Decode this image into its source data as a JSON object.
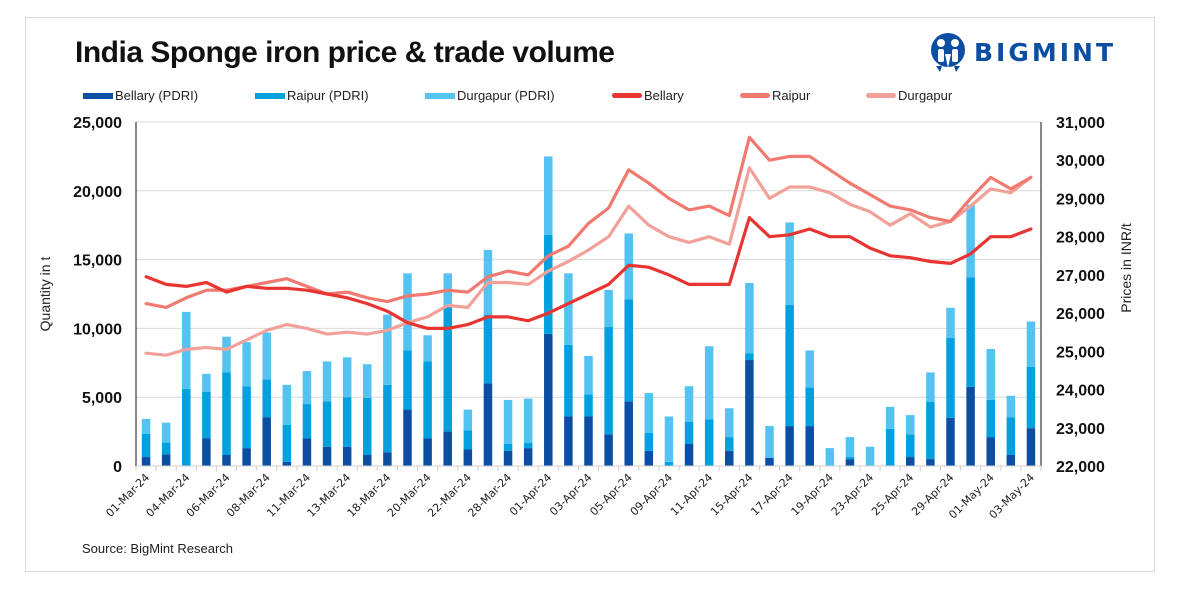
{
  "header": {
    "title": "India Sponge iron price & trade volume",
    "logo_text": "BIGMINT"
  },
  "footer": {
    "source": "Source: BigMint Research"
  },
  "colors": {
    "bellary_pdri": "#0b4ea2",
    "raipur_pdri": "#03a0e0",
    "durgapur_pdri": "#55c3f2",
    "bellary": "#e83531",
    "raipur": "#f07a70",
    "durgapur": "#f2a19a",
    "grid": "#d9d9d9",
    "brand": "#0b4ea2"
  },
  "chart_data": {
    "type": "bar+line",
    "title": "India Sponge iron price & trade volume",
    "ylabel": "Quantity in t",
    "y2label": "Prices in INR/t",
    "ylim": [
      0,
      25000
    ],
    "y2lim": [
      22000,
      31000
    ],
    "yticks": [
      "0",
      "5,000",
      "10,000",
      "15,000",
      "20,000",
      "25,000"
    ],
    "y2ticks": [
      "22,000",
      "23,000",
      "24,000",
      "25,000",
      "26,000",
      "27,000",
      "28,000",
      "29,000",
      "30,000",
      "31,000"
    ],
    "grid": true,
    "legend_position": "top",
    "categories": [
      "01-Mar-24",
      "",
      "04-Mar-24",
      "",
      "06-Mar-24",
      "",
      "08-Mar-24",
      "",
      "11-Mar-24",
      "",
      "13-Mar-24",
      "",
      "18-Mar-24",
      "",
      "20-Mar-24",
      "",
      "22-Mar-24",
      "",
      "28-Mar-24",
      "",
      "01-Apr-24",
      "",
      "03-Apr-24",
      "",
      "05-Apr-24",
      "",
      "09-Apr-24",
      "",
      "11-Apr-24",
      "",
      "15-Apr-24",
      "",
      "17-Apr-24",
      "",
      "19-Apr-24",
      "",
      "23-Apr-24",
      "",
      "25-Apr-24",
      "",
      "29-Apr-24",
      "",
      "01-May-24",
      "",
      "03-May-24"
    ],
    "bar_series": [
      {
        "name": "Bellary (PDRI)",
        "key": "bellary_pdri",
        "values": [
          650,
          850,
          0,
          2000,
          800,
          1300,
          3550,
          300,
          2000,
          1400,
          1400,
          800,
          1000,
          4100,
          2000,
          2500,
          1200,
          6000,
          1100,
          1300,
          9600,
          3600,
          3600,
          2300,
          4700,
          1100,
          0,
          1600,
          0,
          1100,
          7700,
          600,
          2900,
          2900,
          0,
          500,
          0,
          0,
          650,
          500,
          3500,
          5750,
          2100,
          800,
          2750
        ]
      },
      {
        "name": "Raipur (PDRI)",
        "key": "raipur_pdri",
        "values": [
          1680,
          850,
          5600,
          3400,
          6000,
          4500,
          2750,
          2700,
          2500,
          3300,
          3600,
          4150,
          4900,
          4300,
          5600,
          9100,
          1400,
          5000,
          500,
          400,
          7200,
          5200,
          1600,
          7800,
          7400,
          1300,
          300,
          1600,
          3400,
          1000,
          500,
          0,
          8800,
          2800,
          0,
          150,
          0,
          2700,
          1650,
          4150,
          5800,
          7950,
          2700,
          2750,
          4450
        ]
      },
      {
        "name": "Durgapur (PDRI)",
        "key": "durgapur_pdri",
        "values": [
          1090,
          1450,
          5600,
          1300,
          2600,
          3200,
          3400,
          2900,
          2400,
          2900,
          2900,
          2450,
          5100,
          5600,
          1900,
          2400,
          1500,
          4700,
          3200,
          3200,
          5700,
          5200,
          2800,
          2700,
          4800,
          2900,
          3300,
          2600,
          5300,
          2100,
          5100,
          2300,
          6000,
          2700,
          1300,
          1450,
          1400,
          1600,
          1400,
          2150,
          2200,
          5300,
          3700,
          1550,
          3300
        ]
      }
    ],
    "line_series": [
      {
        "name": "Bellary",
        "key": "bellary",
        "values": [
          26950,
          26750,
          26700,
          26800,
          26550,
          26700,
          26650,
          26650,
          26600,
          26500,
          26400,
          26250,
          26050,
          25750,
          25600,
          25600,
          25700,
          25900,
          25900,
          25800,
          26000,
          26250,
          26500,
          26750,
          27250,
          27200,
          27000,
          26750,
          26750,
          26750,
          28500,
          28000,
          28050,
          28200,
          28000,
          28000,
          27700,
          27500,
          27450,
          27350,
          27300,
          27550,
          28000,
          28000,
          28200
        ]
      },
      {
        "name": "Raipur",
        "key": "raipur",
        "values": [
          26250,
          26150,
          26400,
          26600,
          26600,
          26700,
          26800,
          26900,
          26700,
          26500,
          26550,
          26400,
          26300,
          26450,
          26500,
          26600,
          26550,
          26950,
          27100,
          27000,
          27500,
          27750,
          28350,
          28750,
          29750,
          29400,
          29000,
          28700,
          28800,
          28550,
          30600,
          30000,
          30100,
          30100,
          29750,
          29400,
          29100,
          28800,
          28700,
          28500,
          28400,
          29000,
          29550,
          29250,
          29550
        ]
      },
      {
        "name": "Durgapur",
        "key": "durgapur",
        "values": [
          24950,
          24900,
          25050,
          25100,
          25050,
          25300,
          25550,
          25700,
          25600,
          25450,
          25500,
          25450,
          25550,
          25750,
          25900,
          26200,
          26150,
          26800,
          26800,
          26750,
          27100,
          27350,
          27650,
          28000,
          28800,
          28300,
          28000,
          27850,
          28000,
          27800,
          29800,
          29000,
          29300,
          29300,
          29150,
          28850,
          28650,
          28300,
          28600,
          28250,
          28400,
          28800,
          29250,
          29150,
          29550
        ]
      }
    ]
  }
}
